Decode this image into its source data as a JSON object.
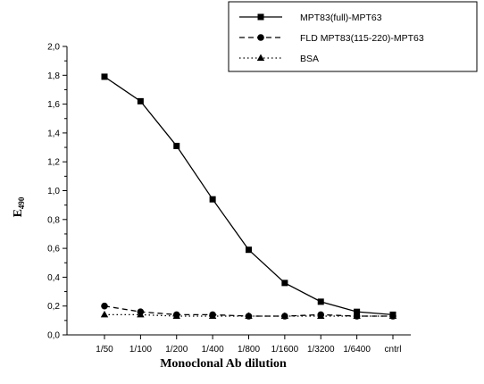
{
  "chart_data": {
    "type": "line",
    "xlabel": "Monoclonal Ab dilution",
    "ylabel": "E",
    "ylabel_sub": "490",
    "categories": [
      "1/50",
      "1/100",
      "1/200",
      "1/400",
      "1/800",
      "1/1600",
      "1/3200",
      "1/6400",
      "cntrl"
    ],
    "ylim": [
      0,
      2.0
    ],
    "yticks": [
      "0,0",
      "0,2",
      "0,4",
      "0,6",
      "0,8",
      "1,0",
      "1,2",
      "1,4",
      "1,6",
      "1,8",
      "2,0"
    ],
    "grid": false,
    "legend_position": "top-right",
    "series": [
      {
        "name": "MPT83(full)-MPT63",
        "line_style": "solid",
        "marker": "square",
        "color": "#000000",
        "values": [
          1.79,
          1.62,
          1.31,
          0.94,
          0.59,
          0.36,
          0.23,
          0.16,
          0.14
        ]
      },
      {
        "name": "FLD MPT83(115-220)-MPT63",
        "line_style": "dashed",
        "marker": "circle",
        "color": "#000000",
        "values": [
          0.2,
          0.16,
          0.14,
          0.14,
          0.13,
          0.13,
          0.14,
          0.13,
          0.13
        ]
      },
      {
        "name": "BSA",
        "line_style": "dotted",
        "marker": "triangle",
        "color": "#000000",
        "values": [
          0.14,
          0.14,
          0.13,
          0.13,
          0.13,
          0.13,
          0.13,
          0.13,
          0.13
        ]
      }
    ]
  }
}
